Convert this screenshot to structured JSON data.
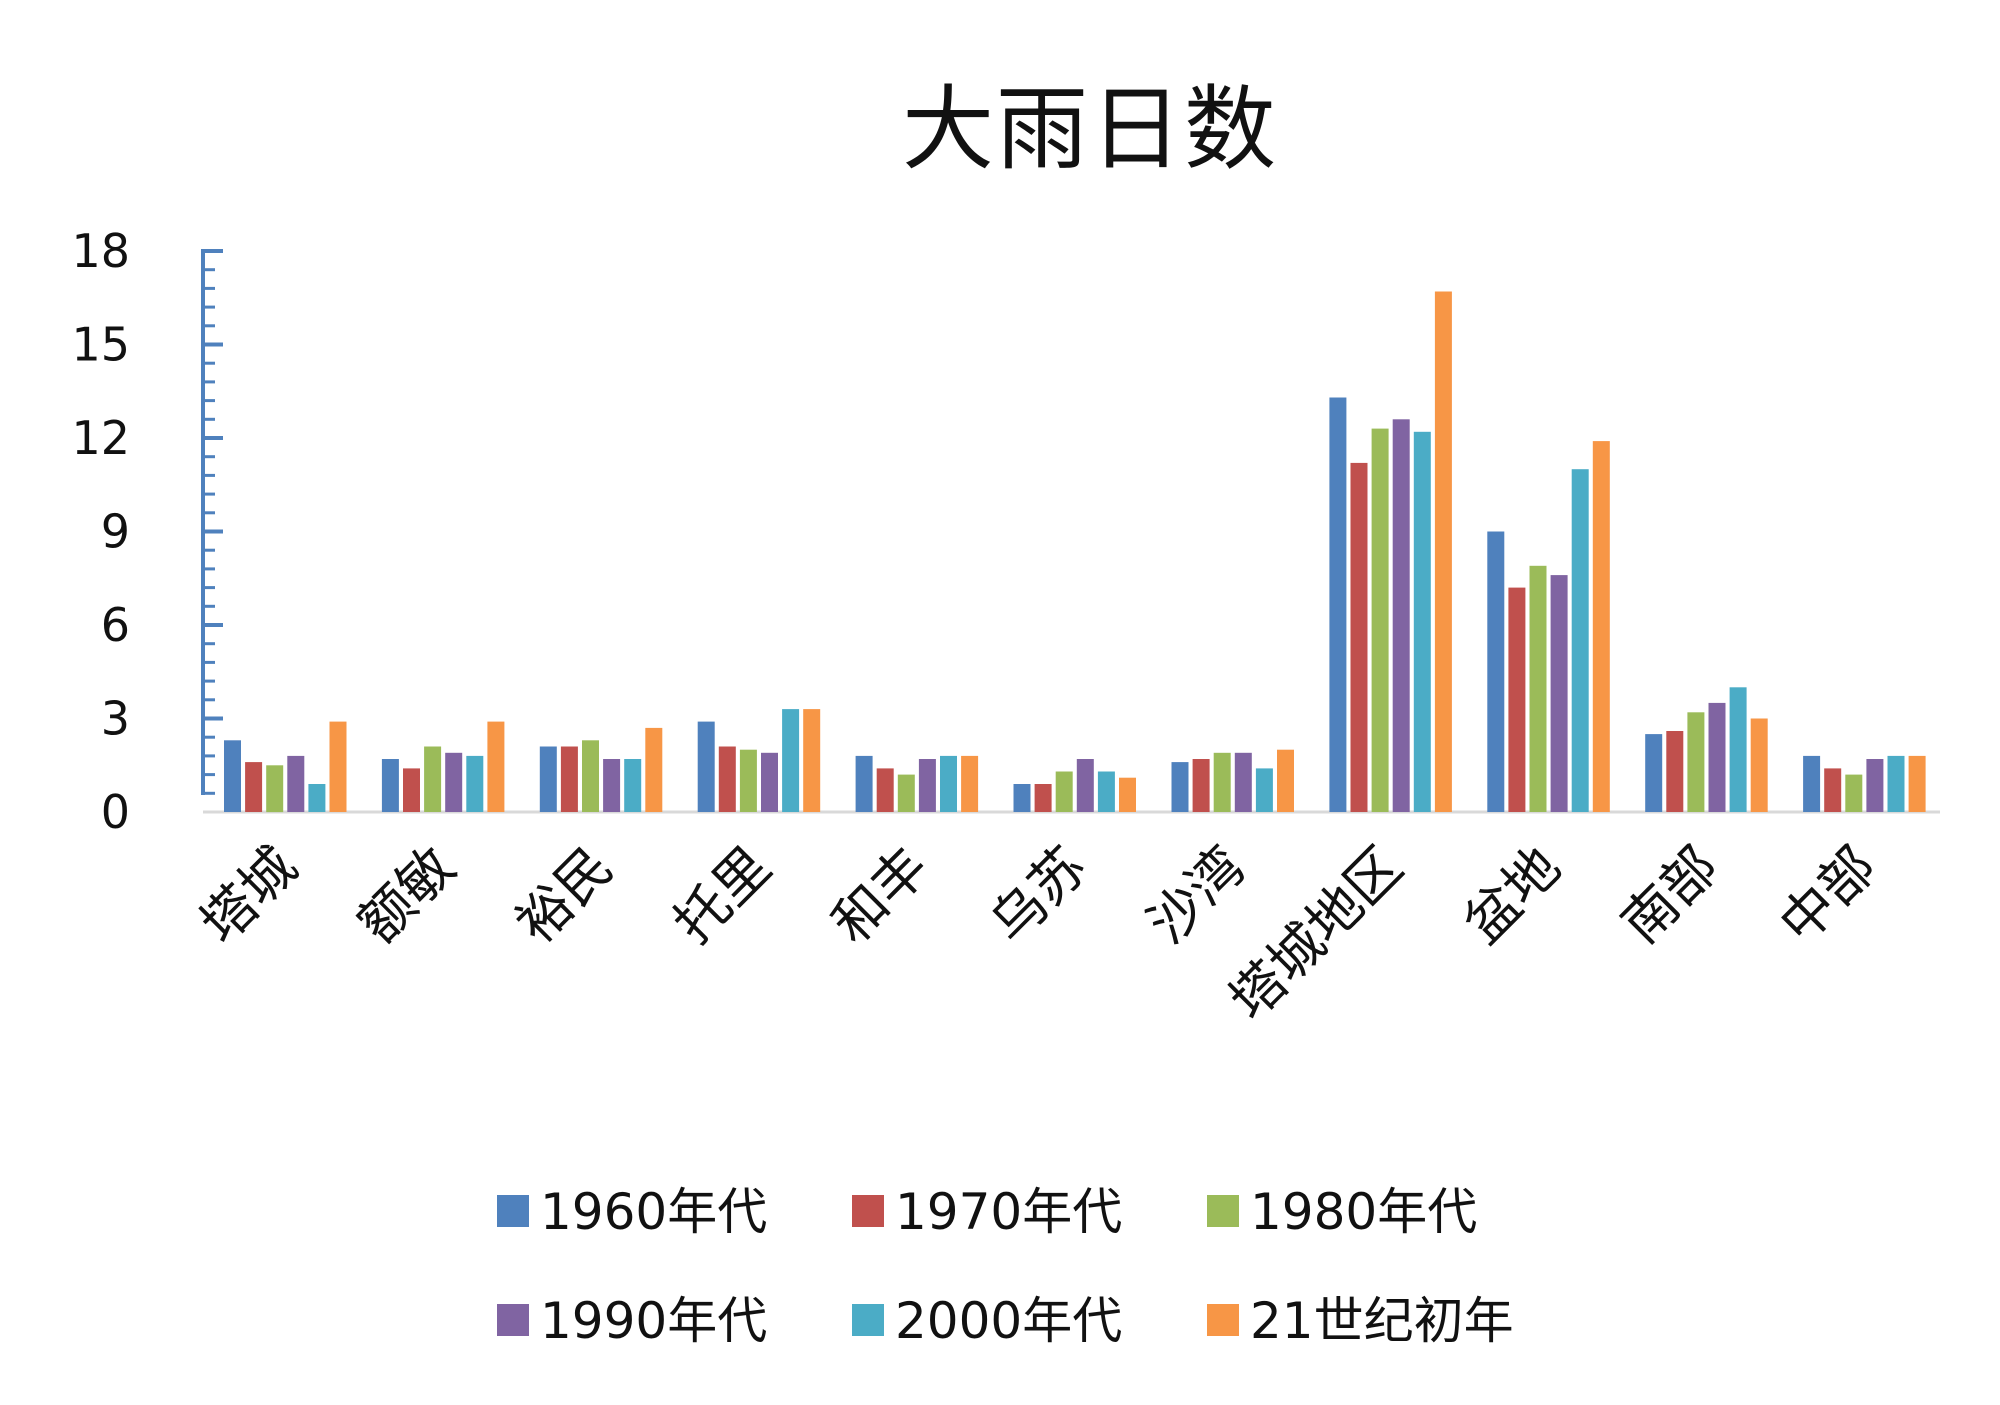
{
  "chart_data": {
    "type": "bar",
    "title": "大雨日数",
    "xlabel": "",
    "ylabel": "",
    "ylim": [
      0,
      18
    ],
    "yticks": [
      0,
      3,
      6,
      9,
      12,
      15,
      18
    ],
    "grid": false,
    "legend_position": "bottom",
    "categories": [
      "塔城",
      "额敏",
      "裕民",
      "托里",
      "和丰",
      "乌苏",
      "沙湾",
      "塔城地区",
      "盆地",
      "南部",
      "中部"
    ],
    "series": [
      {
        "name": "1960年代",
        "color": "#4F81BD",
        "values": [
          2.3,
          1.7,
          2.1,
          2.9,
          1.8,
          0.9,
          1.6,
          13.3,
          9.0,
          2.5,
          1.8
        ]
      },
      {
        "name": "1970年代",
        "color": "#C0504D",
        "values": [
          1.6,
          1.4,
          2.1,
          2.1,
          1.4,
          0.9,
          1.7,
          11.2,
          7.2,
          2.6,
          1.4
        ]
      },
      {
        "name": "1980年代",
        "color": "#9BBB59",
        "values": [
          1.5,
          2.1,
          2.3,
          2.0,
          1.2,
          1.3,
          1.9,
          12.3,
          7.9,
          3.2,
          1.2
        ]
      },
      {
        "name": "1990年代",
        "color": "#8064A2",
        "values": [
          1.8,
          1.9,
          1.7,
          1.9,
          1.7,
          1.7,
          1.9,
          12.6,
          7.6,
          3.5,
          1.7
        ]
      },
      {
        "name": "2000年代",
        "color": "#4BACC6",
        "values": [
          0.9,
          1.8,
          1.7,
          3.3,
          1.8,
          1.3,
          1.4,
          12.2,
          11.0,
          4.0,
          1.8
        ]
      },
      {
        "name": "21世纪初年",
        "color": "#F79646",
        "values": [
          2.9,
          2.9,
          2.7,
          3.3,
          1.8,
          1.1,
          2.0,
          16.7,
          11.9,
          3.0,
          1.8
        ]
      }
    ]
  }
}
